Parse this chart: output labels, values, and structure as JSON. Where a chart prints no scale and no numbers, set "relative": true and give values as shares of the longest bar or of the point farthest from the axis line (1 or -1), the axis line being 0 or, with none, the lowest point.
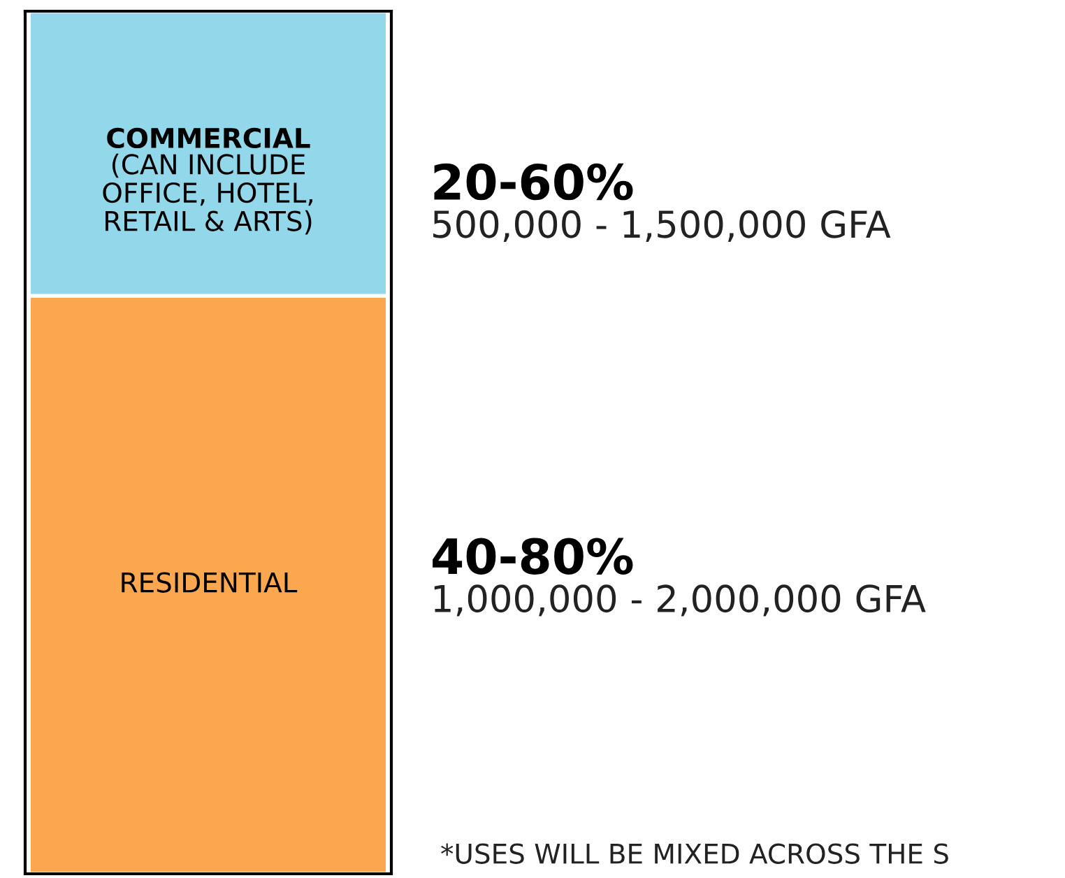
{
  "chart_data": {
    "type": "bar",
    "stacked": true,
    "relative": true,
    "categories": [
      null
    ],
    "series": [
      {
        "name": "RESIDENTIAL",
        "color": "#fba74f",
        "values": [
          0.67
        ]
      },
      {
        "name": "COMMERCIAL\n(CAN INCLUDE\nOFFICE, HOTEL,\nRETAIL & ARTS)",
        "color": "#92d7ea",
        "values": [
          0.33
        ]
      }
    ],
    "annotations": [
      "40-80%",
      "1,000,000 - 2,000,000 GFA",
      "20-60%",
      "500,000 - 1,500,000 GFA",
      "*USES WILL BE MIXED ACROSS THE S"
    ],
    "legend": false
  }
}
